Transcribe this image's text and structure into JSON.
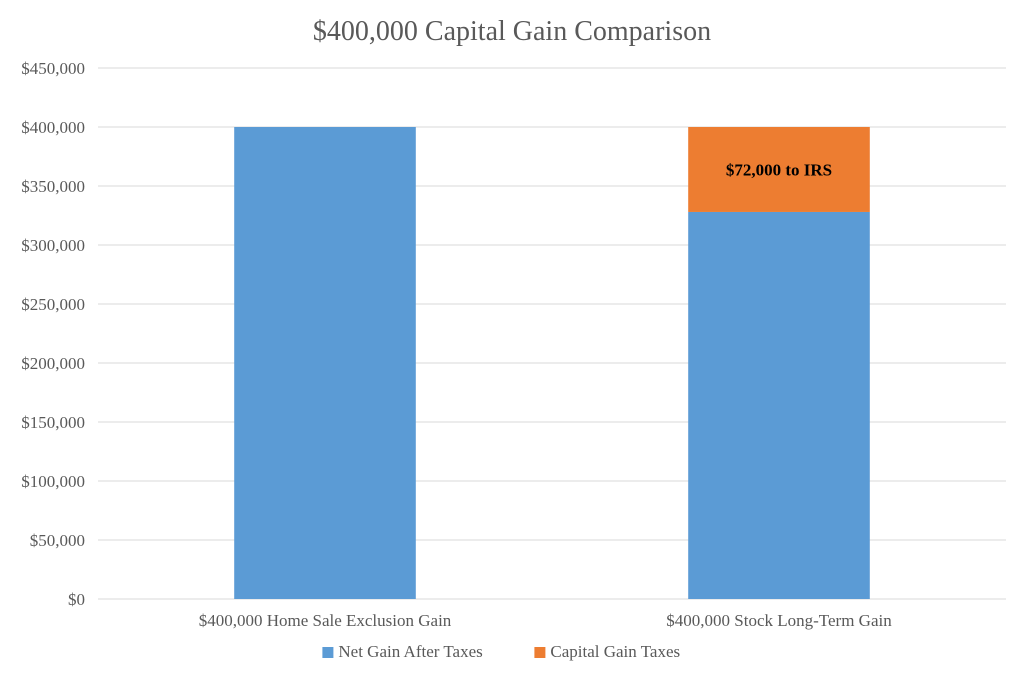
{
  "chart_data": {
    "type": "bar",
    "stacked": true,
    "title": "$400,000 Capital Gain Comparison",
    "xlabel": "",
    "ylabel": "",
    "ylim": [
      0,
      450000
    ],
    "yticks": [
      0,
      50000,
      100000,
      150000,
      200000,
      250000,
      300000,
      350000,
      400000,
      450000
    ],
    "ytick_labels": [
      "$0",
      "$50,000",
      "$100,000",
      "$150,000",
      "$200,000",
      "$250,000",
      "$300,000",
      "$350,000",
      "$400,000",
      "$450,000"
    ],
    "categories": [
      "$400,000 Home Sale Exclusion Gain",
      "$400,000 Stock Long-Term Gain"
    ],
    "series": [
      {
        "name": "Net Gain After Taxes",
        "color": "#5b9bd5",
        "values": [
          400000,
          328000
        ]
      },
      {
        "name": "Capital Gain Taxes",
        "color": "#ed7d31",
        "values": [
          0,
          72000
        ]
      }
    ],
    "annotations": [
      {
        "category_index": 1,
        "series_index": 1,
        "text": "$72,000 to IRS"
      }
    ],
    "grid": true,
    "legend_position": "bottom"
  }
}
